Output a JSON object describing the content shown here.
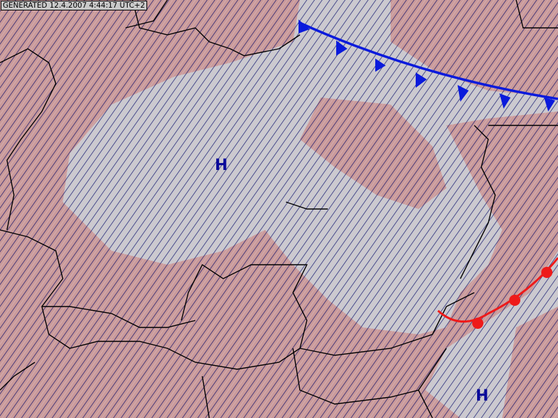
{
  "header": {
    "generated_stamp": "GENERATED 12.4.2007 4:44:17 UTC+2"
  },
  "pressure_centers": [
    {
      "label": "H",
      "type": "high"
    },
    {
      "label": "H",
      "type": "high"
    }
  ],
  "fronts": [
    {
      "type": "cold",
      "color": "#0a1adc"
    },
    {
      "type": "warm",
      "color": "#ee1a1a"
    }
  ],
  "colors": {
    "low_region": "#c99a9a",
    "high_region": "#c9c9cf",
    "hatch": "#0a0a6a",
    "borders": "#000000",
    "pressure_label": "#0a0a9a"
  }
}
